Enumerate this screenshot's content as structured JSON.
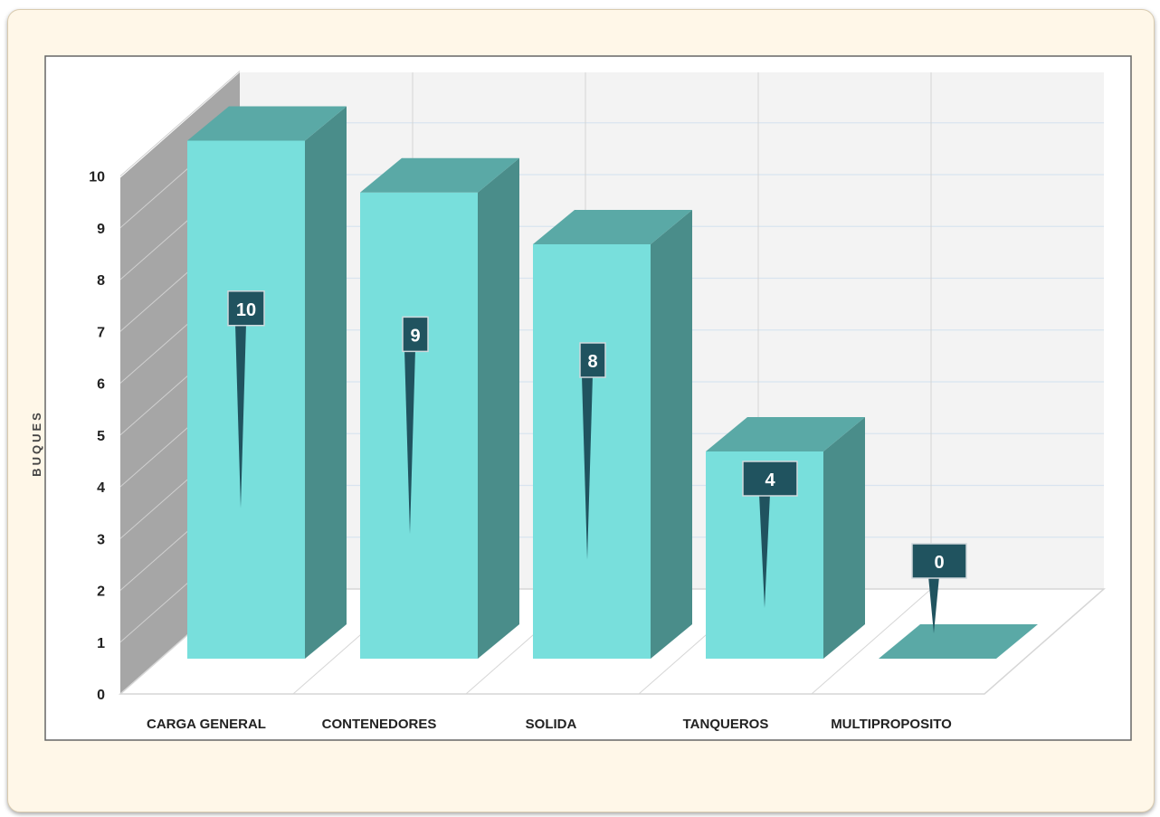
{
  "chart_data": {
    "type": "bar",
    "subtype": "3d-column",
    "title": "",
    "xlabel": "",
    "ylabel": "BUQUES",
    "categories": [
      "CARGA GENERAL",
      "CONTENEDORES",
      "SOLIDA",
      "TANQUEROS",
      "MULTIPROPOSITO"
    ],
    "values": [
      10,
      9,
      8,
      4,
      0
    ],
    "data_labels": [
      "10",
      "9",
      "8",
      "4",
      "0"
    ],
    "y_ticks": [
      "0",
      "1",
      "2",
      "3",
      "4",
      "5",
      "6",
      "7",
      "8",
      "9",
      "10"
    ],
    "ylim": [
      0,
      10
    ],
    "grid": true,
    "legend": "none",
    "colors": {
      "bar_front": "#78dfdc",
      "bar_side": "#4a8d8a",
      "bar_top": "#5aa9a6",
      "callout": "#20535f",
      "wall": "#a6a6a6",
      "backplane": "#f3f3f3",
      "frame": "#fff7e8"
    }
  }
}
